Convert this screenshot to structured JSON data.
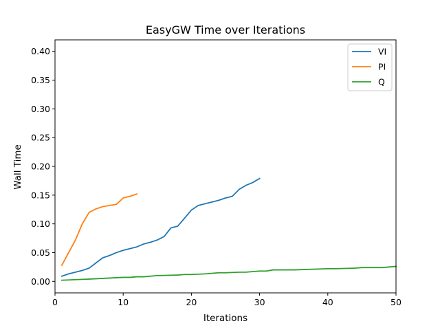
{
  "chart_data": {
    "type": "line",
    "title": "EasyGW Time over Iterations",
    "xlabel": "Iterations",
    "ylabel": "Wall Time",
    "xlim": [
      0,
      50
    ],
    "ylim": [
      -0.02,
      0.42
    ],
    "xticks": [
      0,
      10,
      20,
      30,
      40,
      50
    ],
    "yticks": [
      0.0,
      0.05,
      0.1,
      0.15,
      0.2,
      0.25,
      0.3,
      0.35,
      0.4
    ],
    "ytick_labels": [
      "0.00",
      "0.05",
      "0.10",
      "0.15",
      "0.20",
      "0.25",
      "0.30",
      "0.35",
      "0.40"
    ],
    "grid": false,
    "legend_position": "top-right",
    "series": [
      {
        "name": "VI",
        "color": "#1f77b4",
        "x": [
          1,
          2,
          3,
          4,
          5,
          6,
          7,
          8,
          9,
          10,
          11,
          12,
          13,
          14,
          15,
          16,
          17,
          18,
          19,
          20,
          21,
          22,
          23,
          24,
          25,
          26,
          27,
          28,
          29,
          30
        ],
        "y": [
          0.009,
          0.013,
          0.016,
          0.019,
          0.023,
          0.032,
          0.041,
          0.045,
          0.05,
          0.054,
          0.057,
          0.06,
          0.065,
          0.068,
          0.072,
          0.078,
          0.093,
          0.096,
          0.11,
          0.124,
          0.132,
          0.135,
          0.138,
          0.141,
          0.145,
          0.148,
          0.16,
          0.167,
          0.172,
          0.179
        ]
      },
      {
        "name": "PI",
        "color": "#ff7f0e",
        "x": [
          1,
          2,
          3,
          4,
          5,
          6,
          7,
          8,
          9,
          10,
          11,
          12
        ],
        "y": [
          0.028,
          0.05,
          0.072,
          0.1,
          0.12,
          0.126,
          0.13,
          0.132,
          0.134,
          0.145,
          0.148,
          0.152
        ]
      },
      {
        "name": "Q",
        "color": "#2ca02c",
        "x": [
          1,
          5,
          10,
          11,
          12,
          13,
          15,
          18,
          19,
          20,
          22,
          24,
          25,
          27,
          28,
          30,
          31,
          32,
          33,
          35,
          40,
          41,
          44,
          45,
          48,
          50
        ],
        "y": [
          0.002,
          0.004,
          0.007,
          0.007,
          0.008,
          0.008,
          0.01,
          0.011,
          0.012,
          0.012,
          0.013,
          0.015,
          0.015,
          0.016,
          0.016,
          0.018,
          0.018,
          0.02,
          0.02,
          0.02,
          0.022,
          0.022,
          0.023,
          0.024,
          0.024,
          0.026
        ]
      }
    ]
  }
}
